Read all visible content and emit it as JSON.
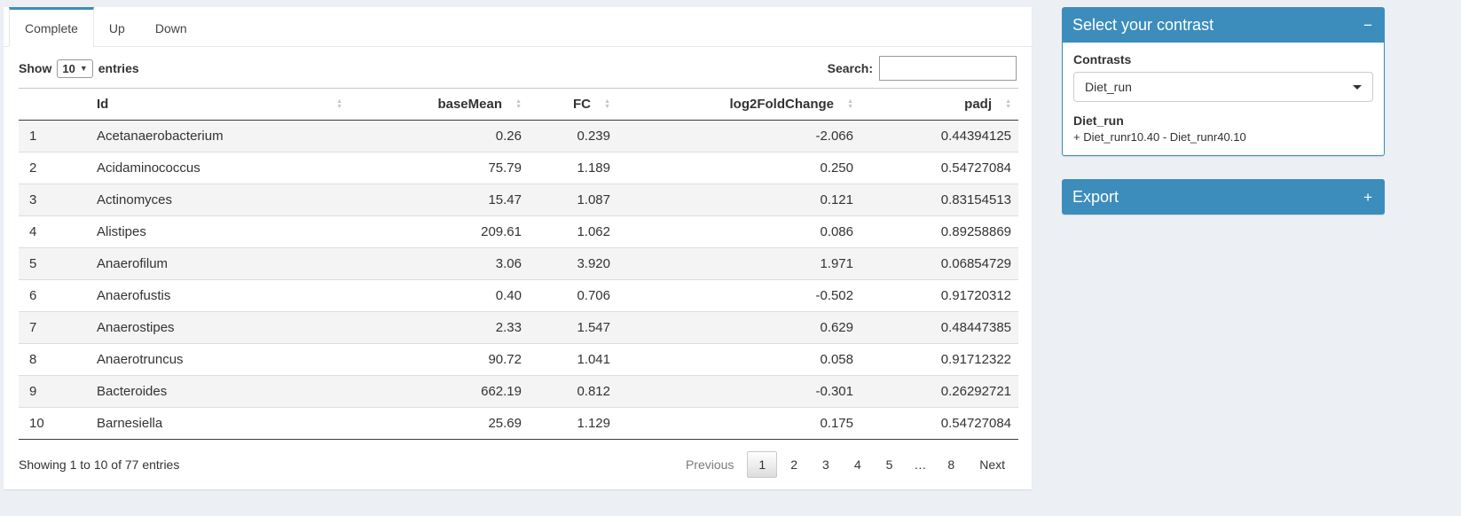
{
  "tabs": [
    {
      "label": "Complete",
      "active": true
    },
    {
      "label": "Up",
      "active": false
    },
    {
      "label": "Down",
      "active": false
    }
  ],
  "controls": {
    "show_label": "Show",
    "page_length": "10",
    "entries_label": "entries",
    "search_label": "Search:",
    "search_value": ""
  },
  "table": {
    "columns": {
      "id": "Id",
      "basemean": "baseMean",
      "fc": "FC",
      "log2fc": "log2FoldChange",
      "padj": "padj"
    },
    "rows": [
      {
        "index": "1",
        "id": "Acetanaerobacterium",
        "basemean": "0.26",
        "fc": "0.239",
        "log2fc": "-2.066",
        "padj": "0.44394125"
      },
      {
        "index": "2",
        "id": "Acidaminococcus",
        "basemean": "75.79",
        "fc": "1.189",
        "log2fc": "0.250",
        "padj": "0.54727084"
      },
      {
        "index": "3",
        "id": "Actinomyces",
        "basemean": "15.47",
        "fc": "1.087",
        "log2fc": "0.121",
        "padj": "0.83154513"
      },
      {
        "index": "4",
        "id": "Alistipes",
        "basemean": "209.61",
        "fc": "1.062",
        "log2fc": "0.086",
        "padj": "0.89258869"
      },
      {
        "index": "5",
        "id": "Anaerofilum",
        "basemean": "3.06",
        "fc": "3.920",
        "log2fc": "1.971",
        "padj": "0.06854729"
      },
      {
        "index": "6",
        "id": "Anaerofustis",
        "basemean": "0.40",
        "fc": "0.706",
        "log2fc": "-0.502",
        "padj": "0.91720312"
      },
      {
        "index": "7",
        "id": "Anaerostipes",
        "basemean": "2.33",
        "fc": "1.547",
        "log2fc": "0.629",
        "padj": "0.48447385"
      },
      {
        "index": "8",
        "id": "Anaerotruncus",
        "basemean": "90.72",
        "fc": "1.041",
        "log2fc": "0.058",
        "padj": "0.91712322"
      },
      {
        "index": "9",
        "id": "Bacteroides",
        "basemean": "662.19",
        "fc": "0.812",
        "log2fc": "-0.301",
        "padj": "0.26292721"
      },
      {
        "index": "10",
        "id": "Barnesiella",
        "basemean": "25.69",
        "fc": "1.129",
        "log2fc": "0.175",
        "padj": "0.54727084"
      }
    ]
  },
  "footer": {
    "info": "Showing 1 to 10 of 77 entries",
    "pagination": [
      {
        "label": "Previous",
        "state": "disabled"
      },
      {
        "label": "1",
        "state": "active"
      },
      {
        "label": "2",
        "state": "page"
      },
      {
        "label": "3",
        "state": "page"
      },
      {
        "label": "4",
        "state": "page"
      },
      {
        "label": "5",
        "state": "page"
      },
      {
        "label": "…",
        "state": "ellipsis"
      },
      {
        "label": "8",
        "state": "page"
      },
      {
        "label": "Next",
        "state": "page"
      }
    ]
  },
  "contrast_box": {
    "title": "Select your contrast",
    "collapse_label": "−",
    "contrasts_label": "Contrasts",
    "selected_contrast": "Diet_run",
    "contrast_name": "Diet_run",
    "contrast_formula": "+ Diet_runr10.40 - Diet_runr40.10"
  },
  "export_box": {
    "title": "Export",
    "expand_label": "+"
  },
  "colors": {
    "primary": "#3c8dbc",
    "page_background": "#ecf0f5"
  }
}
